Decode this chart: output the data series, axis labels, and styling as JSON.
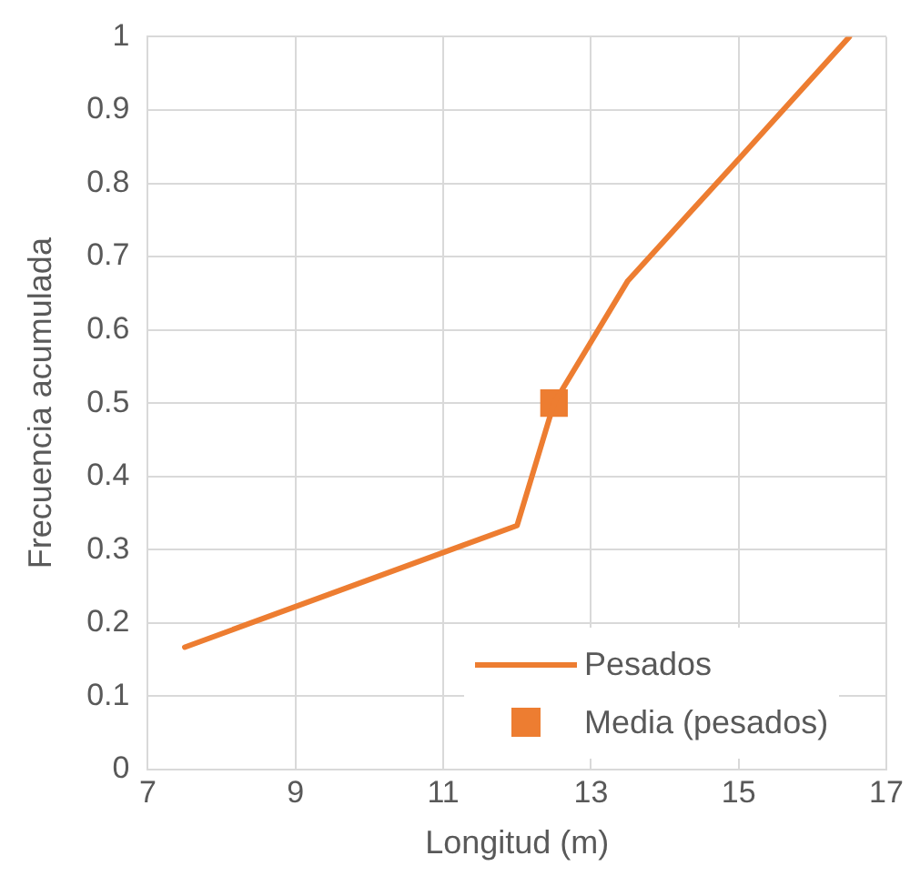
{
  "chart_data": {
    "type": "line",
    "xlabel": "Longitud (m)",
    "ylabel": "Frecuencia acumulada",
    "xlim": [
      7,
      17
    ],
    "xticks": [
      7,
      9,
      11,
      13,
      15,
      17
    ],
    "ylim": [
      0,
      1
    ],
    "yticks": [
      0,
      0.1,
      0.2,
      0.3,
      0.4,
      0.5,
      0.6,
      0.7,
      0.8,
      0.9,
      1
    ],
    "grid": true,
    "legend": "bottom right",
    "line_style": "solid",
    "series": [
      {
        "name": "Pesados",
        "type": "line",
        "color": "#ed7d31",
        "marker": "none",
        "x": [
          7.5,
          12,
          12.5,
          13.5,
          15,
          16.5
        ],
        "values": [
          0.167,
          0.333,
          0.5,
          0.667,
          0.833,
          1
        ]
      },
      {
        "name": "Media (pesados)",
        "type": "scatter",
        "color": "#ed7d31",
        "marker": "square",
        "x": [
          12.5
        ],
        "values": [
          0.5
        ]
      }
    ]
  }
}
